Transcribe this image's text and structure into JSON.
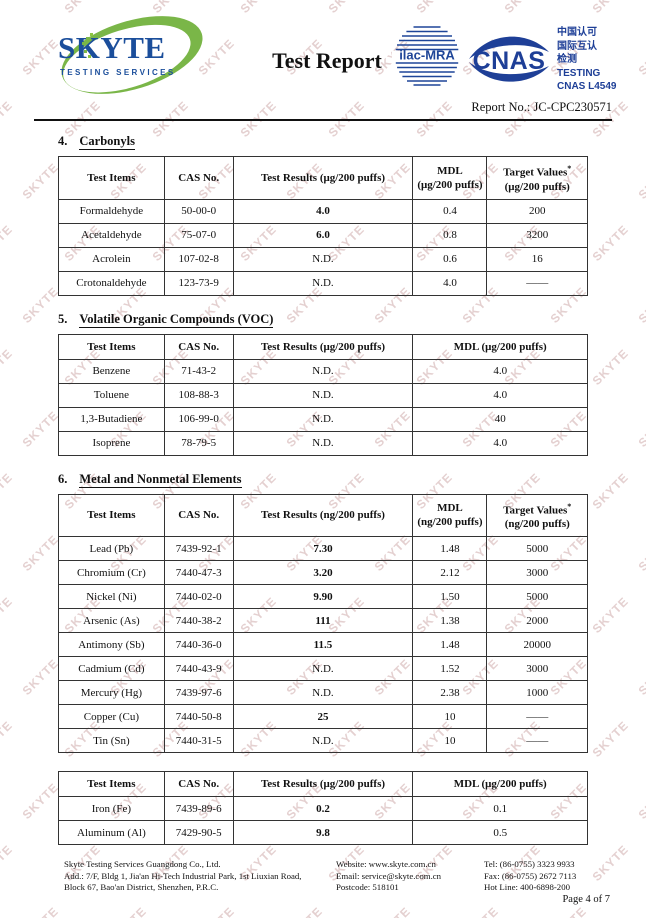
{
  "watermark": {
    "text": "SKYTE"
  },
  "header": {
    "logo_brand": "SKYTE",
    "logo_tagline": "TESTING SERVICES",
    "title": "Test Report",
    "ilac_label": "ilac-MRA",
    "cnas_label": "CNAS",
    "accreditation_lines": [
      "中国认可",
      "国际互认",
      "检测",
      "TESTING",
      "CNAS L4549"
    ],
    "report_no": "Report No.: JC-CPC230571"
  },
  "sections": [
    {
      "number": "4.",
      "title": "Carbonyls",
      "columns": [
        [
          "Test Items"
        ],
        [
          "CAS No."
        ],
        [
          "Test Results (μg/200 puffs)"
        ],
        [
          "MDL",
          "(μg/200 puffs)"
        ],
        [
          "Target Values*",
          "(μg/200 puffs)"
        ]
      ],
      "rows": [
        [
          "Formaldehyde",
          "50-00-0",
          "4.0",
          "0.4",
          "200"
        ],
        [
          "Acetaldehyde",
          "75-07-0",
          "6.0",
          "0.8",
          "3200"
        ],
        [
          "Acrolein",
          "107-02-8",
          "N.D.",
          "0.6",
          "16"
        ],
        [
          "Crotonaldehyde",
          "123-73-9",
          "N.D.",
          "4.0",
          "——"
        ]
      ]
    },
    {
      "number": "5.",
      "title": "Volatile Organic Compounds (VOC)",
      "columns": [
        [
          "Test Items"
        ],
        [
          "CAS No."
        ],
        [
          "Test Results (μg/200 puffs)"
        ],
        [
          "MDL (μg/200 puffs)"
        ]
      ],
      "rows": [
        [
          "Benzene",
          "71-43-2",
          "N.D.",
          "4.0"
        ],
        [
          "Toluene",
          "108-88-3",
          "N.D.",
          "4.0"
        ],
        [
          "1,3-Butadiene",
          "106-99-0",
          "N.D.",
          "40"
        ],
        [
          "Isoprene",
          "78-79-5",
          "N.D.",
          "4.0"
        ]
      ]
    },
    {
      "number": "6.",
      "title": "Metal and Nonmetal Elements",
      "columns": [
        [
          "Test Items"
        ],
        [
          "CAS No."
        ],
        [
          "Test Results (ng/200 puffs)"
        ],
        [
          "MDL",
          "(ng/200 puffs)"
        ],
        [
          "Target Values*",
          "(ng/200 puffs)"
        ]
      ],
      "rows": [
        [
          "Lead (Pb)",
          "7439-92-1",
          "7.30",
          "1.48",
          "5000"
        ],
        [
          "Chromium (Cr)",
          "7440-47-3",
          "3.20",
          "2.12",
          "3000"
        ],
        [
          "Nickel (Ni)",
          "7440-02-0",
          "9.90",
          "1.50",
          "5000"
        ],
        [
          "Arsenic (As)",
          "7440-38-2",
          "111",
          "1.38",
          "2000"
        ],
        [
          "Antimony (Sb)",
          "7440-36-0",
          "11.5",
          "1.48",
          "20000"
        ],
        [
          "Cadmium (Cd)",
          "7440-43-9",
          "N.D.",
          "1.52",
          "3000"
        ],
        [
          "Mercury (Hg)",
          "7439-97-6",
          "N.D.",
          "2.38",
          "1000"
        ],
        [
          "Copper (Cu)",
          "7440-50-8",
          "25",
          "10",
          "——"
        ],
        [
          "Tin (Sn)",
          "7440-31-5",
          "N.D.",
          "10",
          "——"
        ]
      ]
    },
    {
      "number": "",
      "title": "",
      "columns": [
        [
          "Test Items"
        ],
        [
          "CAS No."
        ],
        [
          "Test Results (μg/200 puffs)"
        ],
        [
          "MDL (μg/200 puffs)"
        ]
      ],
      "rows": [
        [
          "Iron (Fe)",
          "7439-89-6",
          "0.2",
          "0.1"
        ],
        [
          "Aluminum (Al)",
          "7429-90-5",
          "9.8",
          "0.5"
        ]
      ]
    }
  ],
  "footer": {
    "company": "Skyte Testing Services Guangdong Co., Ltd.",
    "address_line1": "Add.: 7/F, Bldg 1, Jia'an Hi-Tech Industrial Park, 1st Liuxian Road,",
    "address_line2": "Block 67, Bao'an District, Shenzhen, P.R.C.",
    "website": "Website: www.skyte.com.cn",
    "email": "Email: service@skyte.com.cn",
    "postcode": "Postcode: 518101",
    "tel": "Tel: (86-0755) 3323 9933",
    "fax": "Fax: (86-0755) 2672 7113",
    "hotline": "Hot Line: 400-6898-200",
    "page_label": "Page 4 of 7"
  },
  "colors": {
    "brand_blue": "#1b4e9b",
    "logo_green": "#7ab648",
    "cnas_blue": "#1e3f97",
    "watermark_pink": "#c79d9d"
  }
}
